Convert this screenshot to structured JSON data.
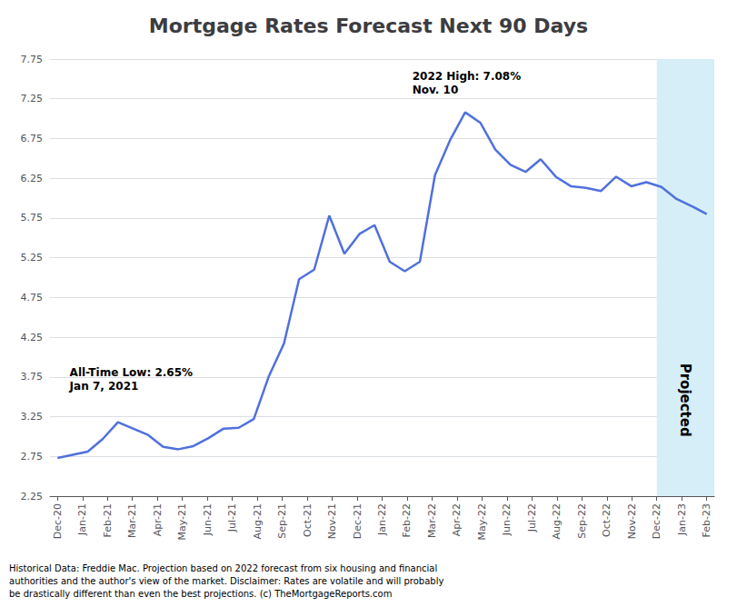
{
  "chart_data": {
    "type": "line",
    "title": "Mortgage Rates Forecast Next 90 Days",
    "x": [
      0,
      1,
      2,
      3,
      4,
      5,
      6,
      7,
      8,
      9,
      10,
      11,
      12,
      13,
      14,
      15,
      16,
      17,
      18,
      19,
      20,
      21,
      22,
      23,
      24,
      25,
      26,
      27,
      28,
      29,
      30,
      31,
      32,
      33,
      34,
      35,
      36,
      37,
      38,
      39,
      40,
      41,
      42,
      43
    ],
    "values": [
      2.73,
      2.77,
      2.81,
      2.97,
      3.18,
      3.1,
      3.02,
      2.87,
      2.84,
      2.88,
      2.98,
      3.1,
      3.11,
      3.22,
      3.76,
      4.17,
      4.98,
      5.1,
      5.78,
      5.3,
      5.55,
      5.66,
      5.2,
      5.08,
      5.2,
      6.29,
      6.73,
      7.08,
      6.95,
      6.61,
      6.42,
      6.33,
      6.49,
      6.27,
      6.15,
      6.13,
      6.09,
      6.27,
      6.15,
      6.2,
      6.14,
      5.99,
      5.9,
      5.8
    ],
    "xlim": [
      -0.5,
      43.5
    ],
    "xticks": [
      {
        "value": 0,
        "label": "Dec-20"
      },
      {
        "value": 1.6538461538461537,
        "label": "Jan-21"
      },
      {
        "value": 3.3076923076923075,
        "label": "Feb-21"
      },
      {
        "value": 4.961538461538462,
        "label": "Mar-21"
      },
      {
        "value": 6.615384615384615,
        "label": "Apr-21"
      },
      {
        "value": 8.26923076923077,
        "label": "May-21"
      },
      {
        "value": 9.923076923076923,
        "label": "Jun-21"
      },
      {
        "value": 11.576923076923077,
        "label": "Jul-21"
      },
      {
        "value": 13.23076923076923,
        "label": "Aug-21"
      },
      {
        "value": 14.884615384615385,
        "label": "Sep-21"
      },
      {
        "value": 16.53846153846154,
        "label": "Oct-21"
      },
      {
        "value": 18.192307692307693,
        "label": "Nov-21"
      },
      {
        "value": 19.846153846153847,
        "label": "Dec-21"
      },
      {
        "value": 21.5,
        "label": "Jan-22"
      },
      {
        "value": 23.153846153846153,
        "label": "Feb-22"
      },
      {
        "value": 24.807692307692307,
        "label": "Mar-22"
      },
      {
        "value": 26.46153846153846,
        "label": "Apr-22"
      },
      {
        "value": 28.115384615384617,
        "label": "May-22"
      },
      {
        "value": 29.76923076923077,
        "label": "Jun-22"
      },
      {
        "value": 31.423076923076923,
        "label": "Jul-22"
      },
      {
        "value": 33.07692307692308,
        "label": "Aug-22"
      },
      {
        "value": 34.73076923076923,
        "label": "Sep-22"
      },
      {
        "value": 36.38461538461539,
        "label": "Oct-22"
      },
      {
        "value": 38.03846153846154,
        "label": "Nov-22"
      },
      {
        "value": 39.69230769230769,
        "label": "Dec-22"
      },
      {
        "value": 41.34615384615385,
        "label": "Jan-23"
      },
      {
        "value": 43,
        "label": "Feb-23"
      }
    ],
    "ylim": [
      2.25,
      7.75
    ],
    "yticks": [
      2.25,
      2.75,
      3.25,
      3.75,
      4.25,
      4.75,
      5.25,
      5.75,
      6.25,
      6.75,
      7.25,
      7.75
    ],
    "grid": true,
    "annotations": [
      {
        "text": "All-Time Low: 2.65%\nJan 7, 2021",
        "x": 0.8,
        "y": 3.55
      },
      {
        "text": "2022 High: 7.08%\nNov. 10",
        "x": 23.5,
        "y": 7.28
      }
    ],
    "shaded_region": {
      "x0": 39.69230769230769,
      "x1": 43.5,
      "label": "Projected",
      "color": "#D6EEF8"
    },
    "footnote": "Historical Data: Freddie Mac. Projection based on 2022 forecast from six housing and financial\nauthorities and the author's view of the market. Disclaimer: Rates are volatile and will probably\nbe drastically different than even the best projections. (c) TheMortgageReports.com"
  }
}
